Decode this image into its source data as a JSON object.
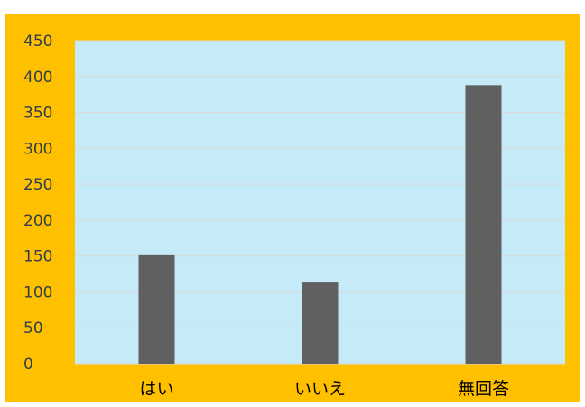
{
  "chart_data": {
    "type": "bar",
    "categories": [
      "はい",
      "いいえ",
      "無回答"
    ],
    "values": [
      151,
      113,
      388
    ],
    "title": "",
    "xlabel": "",
    "ylabel": "",
    "ylim": [
      0,
      450
    ],
    "y_ticks": [
      0,
      50,
      100,
      150,
      200,
      250,
      300,
      350,
      400,
      450
    ],
    "grid": true,
    "legend": "none",
    "colors": {
      "outer_background": "#FFC000",
      "plot_background": "#C5EBF8",
      "bar": "#606060",
      "gridline": "#D9D9D9",
      "tick_text": "#2F3E4F"
    }
  }
}
